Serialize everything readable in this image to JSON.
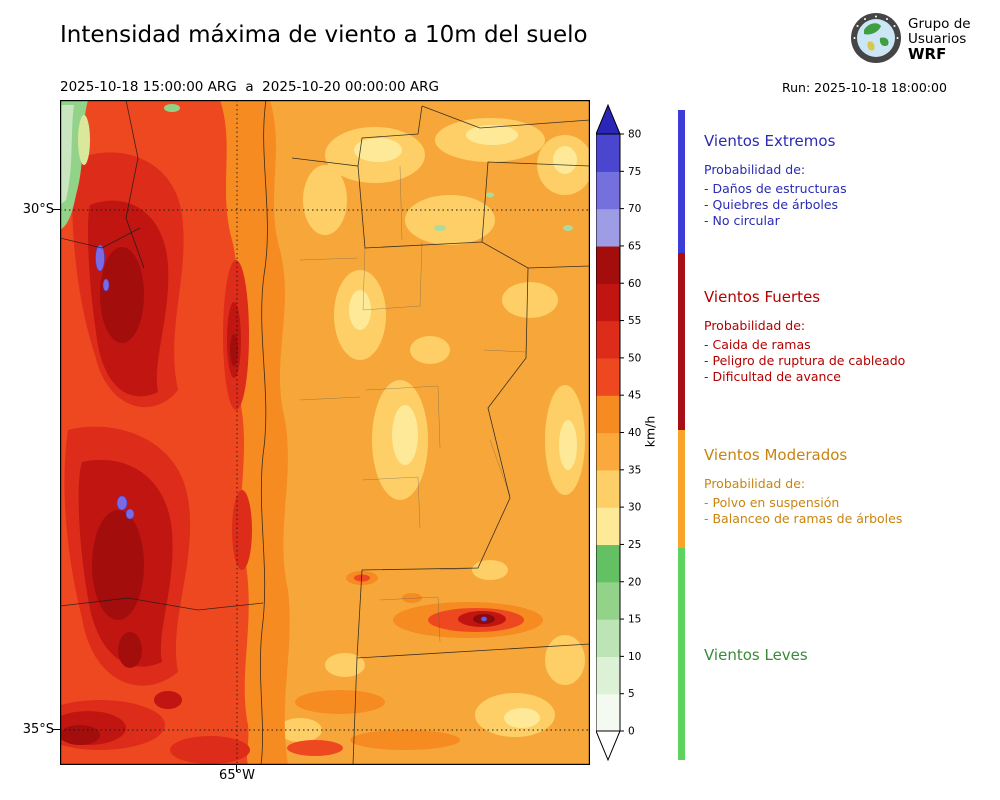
{
  "header": {
    "title": "Intensidad máxima de viento a 10m del suelo",
    "logo": {
      "line1": "Grupo de",
      "line2": "Usuarios",
      "line3": "WRF"
    },
    "valid_period": "2025-10-18 15:00:00 ARG  a  2025-10-20 00:00:00 ARG",
    "run": "Run: 2025-10-18 18:00:00"
  },
  "map": {
    "lat_labels": [
      "30°S",
      "35°S"
    ],
    "lon_labels": [
      "65°W"
    ]
  },
  "colorbar": {
    "unit": "km/h",
    "ticks": [
      0,
      5,
      10,
      15,
      20,
      25,
      30,
      35,
      40,
      45,
      50,
      55,
      60,
      65,
      70,
      75,
      80
    ],
    "segment_colors": [
      "#f4faef",
      "#dcf1d5",
      "#bce4b4",
      "#93d389",
      "#63c164",
      "#fde998",
      "#fdcf66",
      "#fba93c",
      "#f68b22",
      "#ee4820",
      "#dd2c1a",
      "#c01511",
      "#a30d0c",
      "#9f9ce6",
      "#7470dd",
      "#4a46cf"
    ],
    "over_color": "#2a27b8",
    "under_color": "#ffffff"
  },
  "legend": {
    "sections": [
      {
        "title": "Vientos Extremos",
        "color": "#2a2ab4",
        "bar_color": "#3c3cd8",
        "prob_label": "Probabilidad de:",
        "items": [
          "- Daños de estructuras",
          "- Quiebres de árboles",
          "- No circular"
        ]
      },
      {
        "title": "Vientos Fuertes",
        "color": "#b30000",
        "bar_color": "#a50f15",
        "prob_label": "Probabilidad de:",
        "items": [
          "- Caida de ramas",
          "- Peligro de ruptura de cableado",
          "- Dificultad de avance"
        ]
      },
      {
        "title": "Vientos Moderados",
        "color": "#c9840e",
        "bar_color": "#f7a428",
        "prob_label": "Probabilidad de:",
        "items": [
          "- Polvo en suspensión",
          "- Balanceo de ramas de árboles"
        ]
      },
      {
        "title": "Vientos Leves",
        "color": "#3a8a3a",
        "bar_color": "#5fd35f",
        "prob_label": "",
        "items": []
      }
    ]
  }
}
